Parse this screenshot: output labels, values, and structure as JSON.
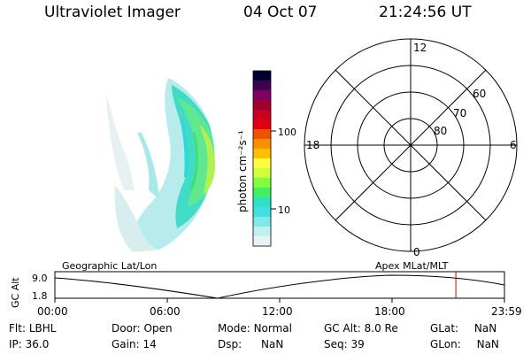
{
  "header": {
    "instrument": "Ultraviolet Imager",
    "date": "04 Oct 07",
    "time": "21:24:56 UT"
  },
  "colorbar": {
    "unit_label": "photon cm⁻²s⁻¹",
    "ticks": [
      "100",
      "10"
    ],
    "colors": [
      "#000030",
      "#400050",
      "#800060",
      "#a00030",
      "#c80020",
      "#e00010",
      "#f05000",
      "#f89000",
      "#ffc000",
      "#ffff40",
      "#d0ff40",
      "#80ff40",
      "#40f060",
      "#30e0c0",
      "#40e0e0",
      "#80e8e8",
      "#c0f0f0",
      "#e8f4f4"
    ]
  },
  "polar_plot": {
    "mlt_labels": {
      "top": "12",
      "bottom": "0",
      "left": "18",
      "right": "6"
    },
    "lat_labels": [
      "60",
      "70",
      "80"
    ]
  },
  "altitude_panel": {
    "ylabel": "GC Alt",
    "ytick_top": "9.0",
    "ytick_bottom": "1.8",
    "left_caption": "Geographic Lat/Lon",
    "right_caption": "Apex MLat/MLT",
    "xticks": [
      "00:00",
      "06:00",
      "12:00",
      "18:00",
      "23:59"
    ],
    "current_time_fraction": 0.892,
    "marker_color": "#c00000"
  },
  "status": {
    "row1": [
      {
        "label": "Flt:",
        "value": "LBHL"
      },
      {
        "label": "Door:",
        "value": "Open"
      },
      {
        "label": "Mode:",
        "value": "Normal"
      },
      {
        "label": "GC Alt:",
        "value": "8.0 Re"
      },
      {
        "label": "GLat:",
        "value": "NaN"
      }
    ],
    "row2": [
      {
        "label": "IP:",
        "value": "36.0"
      },
      {
        "label": "Gain:",
        "value": "14"
      },
      {
        "label": "Dsp:",
        "value": "NaN"
      },
      {
        "label": "Seq:",
        "value": "39"
      },
      {
        "label": "GLon:",
        "value": "NaN"
      }
    ]
  }
}
